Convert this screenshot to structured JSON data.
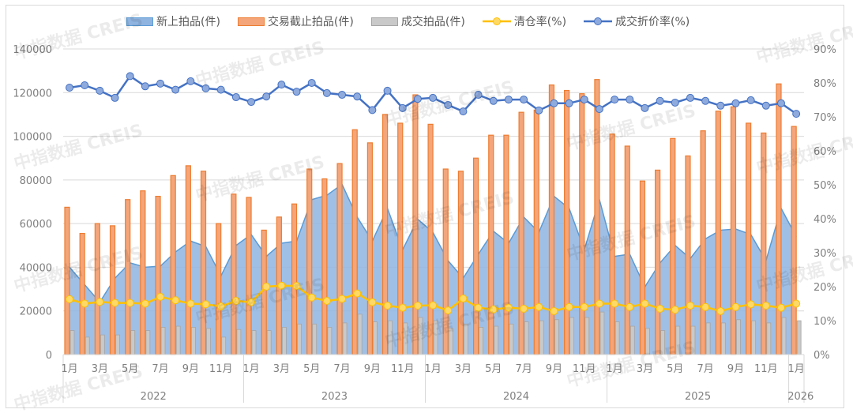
{
  "watermark": "中指数据 CREIS",
  "colors": {
    "area": "#8fb4e0",
    "area_line": "#5b9bd5",
    "orange": "#f4a57a",
    "orange_border": "#ed7d31",
    "gray": "#c9c9c9",
    "clearance": "#ffc000",
    "discount": "#4472c4"
  },
  "chart_data": {
    "type": "bar",
    "legend_position": "top",
    "grid": true,
    "y_left": {
      "range": [
        0,
        140000
      ],
      "ticks": [
        "0",
        "20000",
        "40000",
        "60000",
        "80000",
        "100000",
        "120000",
        "140000"
      ]
    },
    "y_right": {
      "range": [
        0,
        90
      ],
      "ticks": [
        "0%",
        "10%",
        "20%",
        "30%",
        "40%",
        "50%",
        "60%",
        "70%",
        "80%",
        "90%"
      ]
    },
    "years": [
      "2022",
      "2023",
      "2024",
      "2025",
      "2026"
    ],
    "month_labels": [
      "1月",
      "",
      "3月",
      "",
      "5月",
      "",
      "7月",
      "",
      "9月",
      "",
      "11月",
      ""
    ],
    "series": [
      {
        "name": "新上拍品(件)",
        "kind": "area",
        "values": [
          40000,
          32000,
          24000,
          35000,
          42000,
          40000,
          40500,
          47000,
          52000,
          49500,
          36000,
          50000,
          55000,
          45000,
          51000,
          52000,
          71000,
          73000,
          78000,
          63000,
          52000,
          67000,
          48000,
          62000,
          56000,
          43000,
          35000,
          46000,
          56500,
          51000,
          63000,
          56000,
          72500,
          67000,
          48000,
          71000,
          45000,
          46000,
          31000,
          42000,
          50000,
          44000,
          53000,
          57000,
          57500,
          55000,
          43000,
          67000,
          54000
        ]
      },
      {
        "name": "交易截止拍品(件)",
        "kind": "bar",
        "values": [
          67500,
          55500,
          60000,
          59000,
          71000,
          75000,
          72500,
          82000,
          86500,
          84000,
          60000,
          73500,
          72000,
          57000,
          63000,
          69000,
          85000,
          80500,
          87500,
          103000,
          97000,
          110000,
          106000,
          119000,
          105500,
          85000,
          84000,
          90000,
          100500,
          100500,
          111000,
          112000,
          123500,
          121000,
          119500,
          126000,
          101000,
          95500,
          79500,
          84500,
          99000,
          91000,
          102500,
          111500,
          113500,
          106000,
          101500,
          124000,
          104500
        ]
      },
      {
        "name": "成交拍品(件)",
        "kind": "bar",
        "values": [
          11000,
          8000,
          9000,
          9000,
          11000,
          11000,
          12500,
          13000,
          12500,
          12000,
          8000,
          11500,
          11000,
          11000,
          12500,
          14000,
          14000,
          12500,
          14500,
          18500,
          15000,
          15500,
          14500,
          17000,
          15500,
          12000,
          14000,
          12500,
          13000,
          14000,
          15000,
          15500,
          16000,
          17000,
          17000,
          19500,
          15000,
          13000,
          12000,
          11000,
          13000,
          13000,
          14500,
          14500,
          16000,
          15500,
          14500,
          17000,
          15500
        ]
      },
      {
        "name": "清仓率(%)",
        "kind": "line",
        "axis": "right",
        "values": [
          16.3,
          15,
          15.5,
          15.2,
          15.2,
          15,
          17,
          16,
          15,
          14.8,
          14.2,
          15.8,
          15.4,
          20,
          20.3,
          20.2,
          16.8,
          15.8,
          16.4,
          18,
          15.4,
          14.4,
          13.8,
          14.4,
          14.5,
          13,
          16.5,
          13.8,
          13.3,
          13.8,
          13.5,
          14,
          12.8,
          14,
          14,
          15,
          15,
          14,
          15,
          13.5,
          13.2,
          14.4,
          14,
          12.8,
          14,
          14.8,
          14.4,
          13.8,
          15
        ]
      },
      {
        "name": "成交折价率(%)",
        "kind": "line",
        "axis": "right",
        "values": [
          78.6,
          79.3,
          77.7,
          75.6,
          82,
          79,
          79.8,
          78,
          80.5,
          78.4,
          78,
          75.8,
          74.4,
          76,
          79.5,
          77.4,
          80,
          77,
          76.5,
          76,
          72,
          77.7,
          72.6,
          75.3,
          75.6,
          73.5,
          71.6,
          76.5,
          74.7,
          75.1,
          75.1,
          71.9,
          74,
          74,
          75.1,
          72.3,
          75.1,
          75.1,
          72.6,
          74.7,
          74.2,
          75.6,
          74.7,
          73.3,
          74,
          74.9,
          73.3,
          74,
          70.9
        ]
      }
    ]
  }
}
